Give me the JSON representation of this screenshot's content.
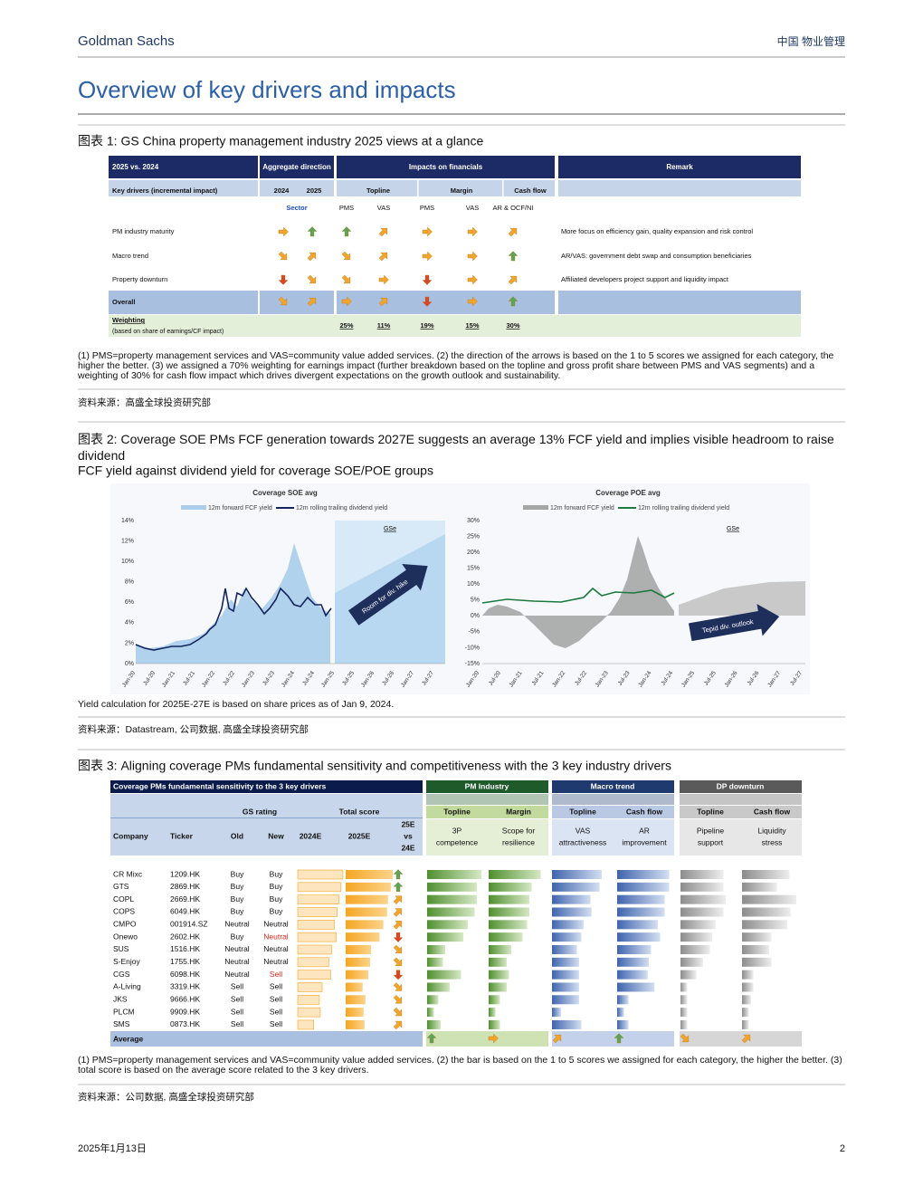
{
  "header": {
    "brand": "Goldman Sachs",
    "section": "中国 物业管理"
  },
  "title": "Overview of key drivers and impacts",
  "exhibit1": {
    "caption": "图表 1: GS China property management industry 2025 views at a glance",
    "table": {
      "header_top": [
        "2025 vs. 2024",
        "Aggregate direction",
        "Impacts on financials",
        "Remark"
      ],
      "header_sub": [
        "Key drivers (incremental impact)",
        "2024",
        "2025",
        "Topline",
        "Margin",
        "Cash flow"
      ],
      "sector": "Sector",
      "sub_columns": [
        "PMS",
        "VAS",
        "PMS",
        "VAS",
        "AR & OCF/NI"
      ],
      "rows": [
        {
          "label": "PM industry maturity",
          "scores": [
            3,
            5,
            5,
            4,
            3,
            3,
            4
          ],
          "remark": "More focus on efficiency gain, quality expansion and risk control"
        },
        {
          "label": "Macro trend",
          "scores": [
            2,
            4,
            2,
            4,
            3,
            3,
            5
          ],
          "remark": "AR/VAS: government debt swap and consumption beneficiaries"
        },
        {
          "label": "Property downturn",
          "scores": [
            1,
            2,
            2,
            3,
            1,
            3,
            4
          ],
          "remark": "Affiliated developers project support and liquidity impact"
        }
      ],
      "overall": {
        "label": "Overall",
        "scores": [
          2,
          4,
          3,
          4,
          1,
          3,
          5
        ]
      },
      "weighting": {
        "label": "Weighting",
        "note": "(based on share of earnings/CF impact)",
        "values": [
          "25%",
          "11%",
          "19%",
          "15%",
          "30%"
        ]
      }
    },
    "notes": "(1) PMS=property management services and VAS=community value added services. (2) the direction of the arrows is based on the 1 to 5 scores we assigned for each category, the higher the better. (3) we assigned a 70% weighting for earnings impact (further breakdown based on the topline and gross profit share between PMS and VAS segments) and a weighting of 30% for cash flow impact which drives divergent expectations on the growth outlook and sustainability.",
    "source": "资料来源：高盛全球投资研究部"
  },
  "exhibit2": {
    "caption": "图表 2: Coverage SOE PMs FCF generation towards 2027E suggests an average 13% FCF yield and implies visible headroom to raise dividend",
    "subtitle": "FCF yield against dividend yield for coverage SOE/POE groups",
    "charts": [
      {
        "title": "Coverage SOE avg",
        "legend": [
          "12m forward FCF yield",
          "12m rolling trailing dividend yield"
        ],
        "gse": "GSe",
        "arrow_text": "Room for div. hike",
        "yticks": [
          "0%",
          "2%",
          "4%",
          "6%",
          "8%",
          "10%",
          "12%",
          "14%"
        ],
        "xticks": [
          "Jan-20",
          "Jul-20",
          "Jan-21",
          "Jul-21",
          "Jan-22",
          "Jul-22",
          "Jan-23",
          "Jul-23",
          "Jan-24",
          "Jul-24",
          "Jan-25",
          "Jul-25",
          "Jan-26",
          "Jul-26",
          "Jan-27",
          "Jul-27"
        ]
      },
      {
        "title": "Coverage POE avg",
        "legend": [
          "12m forward FCF yield",
          "12m rolling trailing dividend yield"
        ],
        "gse": "GSe",
        "arrow_text": "Tepid div. outlook",
        "yticks": [
          "-15%",
          "-10%",
          "-5%",
          "0%",
          "5%",
          "10%",
          "15%",
          "20%",
          "25%",
          "30%"
        ],
        "xticks": [
          "Jan-20",
          "Jul-20",
          "Jan-21",
          "Jul-21",
          "Jan-22",
          "Jul-22",
          "Jan-23",
          "Jul-23",
          "Jan-24",
          "Jul-24",
          "Jan-25",
          "Jul-25",
          "Jan-26",
          "Jul-26",
          "Jan-27",
          "Jul-27"
        ]
      }
    ],
    "note": "Yield calculation for 2025E-27E is based on share prices as of Jan 9, 2024.",
    "source": "资料来源：Datastream, 公司数据, 高盛全球投资研究部"
  },
  "exhibit3": {
    "caption": "图表 3: Aligning coverage PMs fundamental sensitivity and competitiveness with the 3 key industry drivers",
    "table": {
      "title": "Coverage PMs fundamental sensitivity to the 3 key drivers",
      "groups": [
        "GS rating",
        "Total score"
      ],
      "columns": [
        "Company",
        "Ticker",
        "Old",
        "New",
        "2024E",
        "2025E"
      ],
      "change_header": [
        "25E",
        "vs",
        "24E"
      ],
      "drivers": [
        {
          "name": "PM Industry",
          "subs": [
            {
              "name": "Topline",
              "desc": [
                "3P",
                "competence"
              ]
            },
            {
              "name": "Margin",
              "desc": [
                "Scope for",
                "resilience"
              ]
            }
          ]
        },
        {
          "name": "Macro trend",
          "subs": [
            {
              "name": "Topline",
              "desc": [
                "VAS",
                "attractiveness"
              ]
            },
            {
              "name": "Cash flow",
              "desc": [
                "AR",
                "improvement"
              ]
            }
          ]
        },
        {
          "name": "DP downturn",
          "subs": [
            {
              "name": "Topline",
              "desc": [
                "Pipeline",
                "support"
              ]
            },
            {
              "name": "Cash flow",
              "desc": [
                "Liquidity",
                "stress"
              ]
            }
          ]
        }
      ],
      "rows": [
        {
          "company": "CR Mixc",
          "ticker": "1209.HK",
          "old": "Buy",
          "new": "Buy",
          "score_2024e": 4.8,
          "score_2025e": 5.0,
          "change": 5,
          "drivers": [
            4.8,
            4.6,
            4.4,
            4.6,
            3.8,
            4.2
          ]
        },
        {
          "company": "GTS",
          "ticker": "2869.HK",
          "old": "Buy",
          "new": "Buy",
          "score_2024e": 4.6,
          "score_2025e": 4.8,
          "change": 5,
          "drivers": [
            4.4,
            3.8,
            4.2,
            4.6,
            3.8,
            3.1
          ]
        },
        {
          "company": "COPL",
          "ticker": "2669.HK",
          "old": "Buy",
          "new": "Buy",
          "score_2024e": 4.4,
          "score_2025e": 4.5,
          "change": 4,
          "drivers": [
            4.4,
            3.6,
            3.4,
            4.2,
            4.0,
            4.8
          ]
        },
        {
          "company": "COPS",
          "ticker": "6049.HK",
          "old": "Buy",
          "new": "Buy",
          "score_2024e": 4.2,
          "score_2025e": 4.4,
          "change": 4,
          "drivers": [
            4.2,
            3.6,
            3.5,
            4.2,
            3.8,
            4.3
          ]
        },
        {
          "company": "CMPO",
          "ticker": "001914.SZ",
          "old": "Neutral",
          "new": "Neutral",
          "score_2024e": 3.9,
          "score_2025e": 4.0,
          "change": 4,
          "drivers": [
            3.6,
            3.4,
            2.8,
            3.6,
            3.1,
            4.0
          ]
        },
        {
          "company": "Onewo",
          "ticker": "2602.HK",
          "old": "Buy",
          "new": "Neutral",
          "score_2024e": 4.1,
          "score_2025e": 3.6,
          "change": 1,
          "drivers": [
            3.2,
            3.0,
            2.6,
            3.8,
            2.8,
            2.6
          ]
        },
        {
          "company": "SUS",
          "ticker": "1516.HK",
          "old": "Neutral",
          "new": "Neutral",
          "score_2024e": 3.6,
          "score_2025e": 2.7,
          "change": 2,
          "drivers": [
            1.6,
            2.0,
            2.2,
            3.0,
            2.6,
            2.4
          ]
        },
        {
          "company": "S-Enjoy",
          "ticker": "1755.HK",
          "old": "Neutral",
          "new": "Neutral",
          "score_2024e": 3.3,
          "score_2025e": 2.6,
          "change": 2,
          "drivers": [
            1.4,
            1.6,
            2.4,
            2.8,
            2.0,
            2.6
          ]
        },
        {
          "company": "CGS",
          "ticker": "6098.HK",
          "old": "Neutral",
          "new": "Sell",
          "score_2024e": 3.5,
          "score_2025e": 2.4,
          "change": 1,
          "drivers": [
            3.0,
            1.8,
            2.4,
            2.7,
            1.4,
            1.0
          ]
        },
        {
          "company": "A-Living",
          "ticker": "3319.HK",
          "old": "Sell",
          "new": "Sell",
          "score_2024e": 2.6,
          "score_2025e": 1.8,
          "change": 2,
          "drivers": [
            2.0,
            1.6,
            2.4,
            3.3,
            0.6,
            1.0
          ]
        },
        {
          "company": "JKS",
          "ticker": "9666.HK",
          "old": "Sell",
          "new": "Sell",
          "score_2024e": 2.3,
          "score_2025e": 2.1,
          "change": 2,
          "drivers": [
            1.0,
            1.0,
            2.4,
            1.0,
            0.6,
            0.8
          ]
        },
        {
          "company": "PLCM",
          "ticker": "9909.HK",
          "old": "Sell",
          "new": "Sell",
          "score_2024e": 2.4,
          "score_2025e": 1.9,
          "change": 2,
          "drivers": [
            0.6,
            0.6,
            0.8,
            0.6,
            0.6,
            0.6
          ]
        },
        {
          "company": "SMS",
          "ticker": "0873.HK",
          "old": "Sell",
          "new": "Sell",
          "score_2024e": 1.7,
          "score_2025e": 2.0,
          "change": 4,
          "drivers": [
            1.2,
            1.0,
            2.6,
            1.0,
            0.6,
            0.6
          ]
        }
      ],
      "average": {
        "label": "Average",
        "arrows": [
          5,
          3,
          4,
          5,
          2,
          4
        ]
      }
    },
    "notes": "(1) PMS=property management services and VAS=community value added services. (2) the bar is based on the 1 to 5 scores we assigned for each category, the higher the better. (3) total score is based on the average score related to the 3 key drivers.",
    "source": "资料来源：公司数据, 高盛全球投资研究部"
  },
  "footer": {
    "date": "2025年1月13日",
    "page": "2"
  }
}
